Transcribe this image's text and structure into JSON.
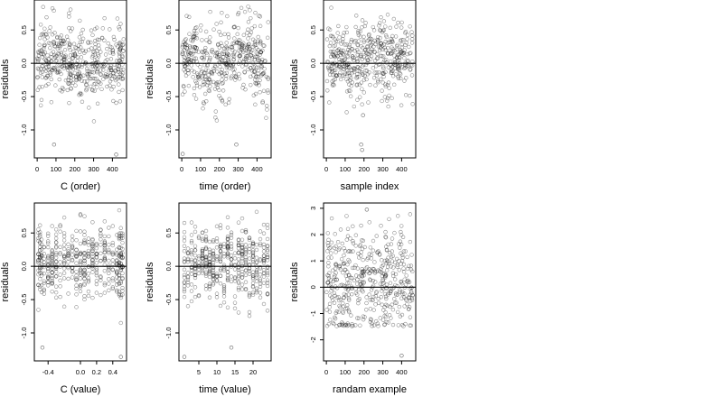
{
  "figure": {
    "ylabel": "residuals",
    "panel_titles": [
      "C (order)",
      "time (order)",
      "sample index",
      "C (value)",
      "time (value)",
      "randam example"
    ]
  },
  "chart_data": [
    {
      "type": "scatter",
      "title": "C (order)",
      "xlabel": "C (order)",
      "ylabel": "residuals",
      "xlim": [
        -15,
        475
      ],
      "ylim": [
        -1.42,
        0.95
      ],
      "xticks": [
        0,
        100,
        200,
        300,
        400
      ],
      "yticks": [
        -1.0,
        -0.5,
        0.0,
        0.5
      ],
      "reference_line": 0,
      "n_points": 460,
      "x_distribution": "uniform",
      "x_range": [
        0,
        460
      ],
      "y_center": 0.05,
      "y_spread": 0.28,
      "y_shape": "wave",
      "outliers": [
        [
          90,
          -1.22
        ],
        [
          420,
          -1.37
        ]
      ],
      "seed": 11
    },
    {
      "type": "scatter",
      "title": "time (order)",
      "xlabel": "time (order)",
      "ylabel": "residuals",
      "xlim": [
        -15,
        475
      ],
      "ylim": [
        -1.42,
        0.95
      ],
      "xticks": [
        0,
        100,
        200,
        300,
        400
      ],
      "yticks": [
        -1.0,
        -0.5,
        0.0,
        0.5
      ],
      "reference_line": 0,
      "n_points": 460,
      "x_distribution": "uniform",
      "x_range": [
        0,
        460
      ],
      "y_center": 0.05,
      "y_spread": 0.28,
      "y_shape": "wave2",
      "outliers": [
        [
          290,
          -1.22
        ],
        [
          5,
          -1.36
        ]
      ],
      "seed": 23
    },
    {
      "type": "scatter",
      "title": "sample index",
      "xlabel": "sample index",
      "ylabel": "residuals",
      "xlim": [
        -15,
        475
      ],
      "ylim": [
        -1.42,
        0.95
      ],
      "xticks": [
        0,
        100,
        200,
        300,
        400
      ],
      "yticks": [
        -1.0,
        -0.5,
        0.0,
        0.5
      ],
      "reference_line": 0,
      "n_points": 460,
      "x_distribution": "uniform",
      "x_range": [
        0,
        460
      ],
      "y_center": 0.05,
      "y_spread": 0.28,
      "y_shape": "flat",
      "outliers": [
        [
          185,
          -1.22
        ],
        [
          190,
          -1.3
        ],
        [
          195,
          -0.78
        ]
      ],
      "seed": 37
    },
    {
      "type": "scatter",
      "title": "C (value)",
      "xlabel": "C (value)",
      "ylabel": "residuals",
      "xlim": [
        -0.57,
        0.57
      ],
      "ylim": [
        -1.42,
        0.95
      ],
      "xticks": [
        -0.4,
        0.0,
        0.2,
        0.4
      ],
      "yticks": [
        -1.0,
        -0.5,
        0.0,
        0.5
      ],
      "reference_line": 0,
      "n_points": 460,
      "x_distribution": "discrete",
      "x_levels": [
        -0.52,
        -0.5,
        -0.48,
        -0.45,
        -0.4,
        -0.35,
        -0.3,
        -0.25,
        -0.2,
        -0.15,
        -0.1,
        -0.05,
        0.0,
        0.05,
        0.1,
        0.15,
        0.2,
        0.25,
        0.3,
        0.35,
        0.4,
        0.45,
        0.48,
        0.5,
        0.52
      ],
      "y_center": 0.05,
      "y_spread": 0.28,
      "y_shape": "flat",
      "outliers": [
        [
          -0.47,
          -1.22
        ],
        [
          0.5,
          -1.36
        ]
      ],
      "seed": 41
    },
    {
      "type": "scatter",
      "title": "time (value)",
      "xlabel": "time (value)",
      "ylabel": "residuals",
      "xlim": [
        -0.5,
        25
      ],
      "ylim": [
        -1.42,
        0.95
      ],
      "xticks": [
        5,
        10,
        15,
        20
      ],
      "yticks": [
        -1.0,
        -0.5,
        0.0,
        0.5
      ],
      "reference_line": 0,
      "n_points": 460,
      "x_distribution": "discrete",
      "x_levels": [
        1,
        2,
        3,
        4,
        5,
        6,
        7,
        8,
        9,
        10,
        11,
        12,
        13,
        14,
        15,
        16,
        17,
        18,
        19,
        20,
        21,
        22,
        23,
        24
      ],
      "y_center": 0.05,
      "y_spread": 0.28,
      "y_shape": "flat",
      "outliers": [
        [
          14,
          -1.22
        ],
        [
          1,
          -1.36
        ]
      ],
      "seed": 53
    },
    {
      "type": "scatter",
      "title": "randam example",
      "xlabel": "randam example",
      "ylabel": "residuals",
      "xlim": [
        -15,
        475
      ],
      "ylim": [
        -2.8,
        3.2
      ],
      "xticks": [
        0,
        100,
        200,
        300,
        400
      ],
      "yticks": [
        -2,
        -1,
        0,
        1,
        2,
        3
      ],
      "reference_line": 0,
      "n_points": 460,
      "x_distribution": "uniform",
      "x_range": [
        0,
        460
      ],
      "y_center": 0.0,
      "y_spread": 1.0,
      "y_shape": "flat",
      "outliers": [
        [
          215,
          2.95
        ],
        [
          400,
          -2.6
        ]
      ],
      "seed": 67
    }
  ]
}
